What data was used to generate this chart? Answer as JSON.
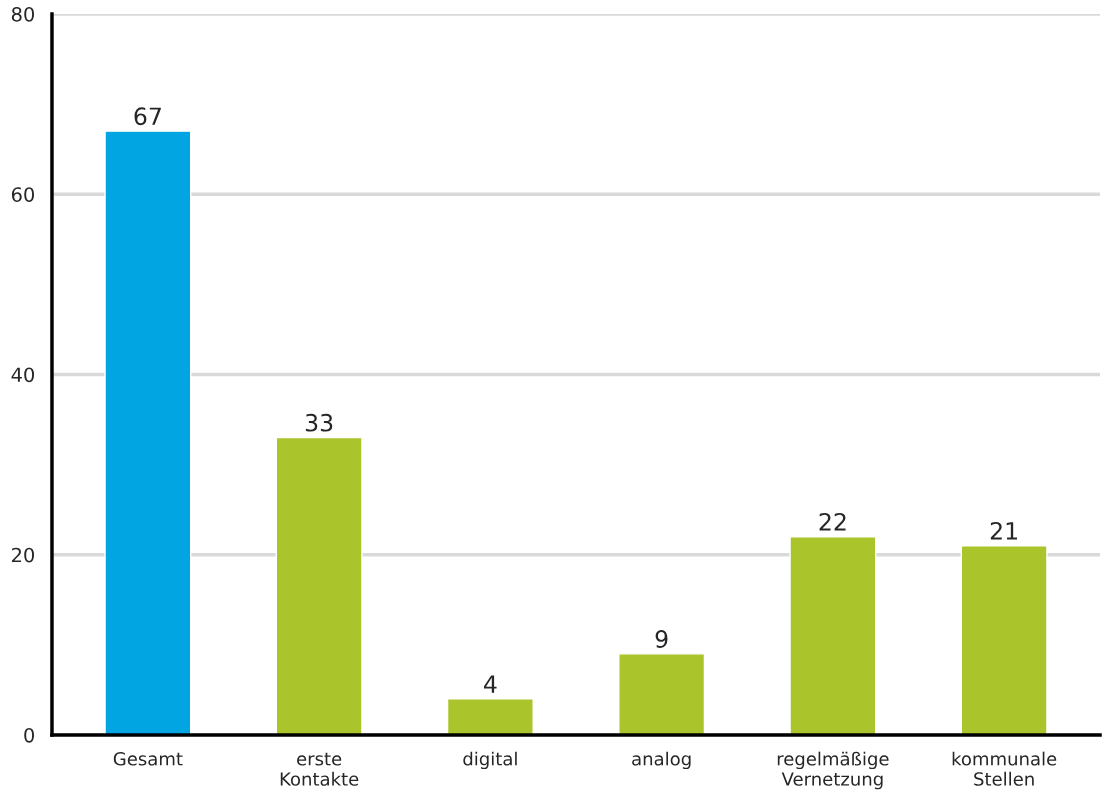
{
  "chart_data": {
    "type": "bar",
    "categories": [
      "Gesamt",
      "erste\nKontakte",
      "digital",
      "analog",
      "regelmäßige\nVernetzung",
      "kommunale\nStellen"
    ],
    "values": [
      67,
      33,
      4,
      9,
      22,
      21
    ],
    "colors": [
      "#00a5e1",
      "#aac42c",
      "#aac42c",
      "#aac42c",
      "#aac42c",
      "#aac42c"
    ],
    "ylim": [
      0,
      80
    ],
    "yticks": [
      0,
      20,
      40,
      60,
      80
    ],
    "grid": "y",
    "data_labels": true,
    "legend": false
  }
}
